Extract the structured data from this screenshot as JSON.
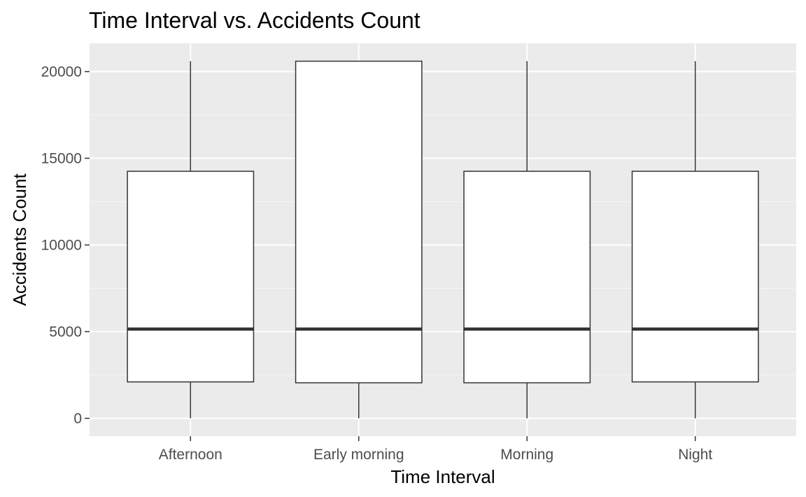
{
  "chart_data": {
    "type": "boxplot",
    "title": "Time Interval vs. Accidents Count",
    "xlabel": "Time Interval",
    "ylabel": "Accidents Count",
    "categories": [
      "Afternoon",
      "Early morning",
      "Morning",
      "Night"
    ],
    "boxes": [
      {
        "category": "Afternoon",
        "min": 0,
        "q1": 2100,
        "median": 5150,
        "q3": 14250,
        "max": 20600
      },
      {
        "category": "Early morning",
        "min": 0,
        "q1": 2050,
        "median": 5150,
        "q3": 20600,
        "max": 20600
      },
      {
        "category": "Morning",
        "min": 0,
        "q1": 2050,
        "median": 5150,
        "q3": 14250,
        "max": 20600
      },
      {
        "category": "Night",
        "min": 0,
        "q1": 2100,
        "median": 5150,
        "q3": 14250,
        "max": 20600
      }
    ],
    "y_ticks": [
      0,
      5000,
      10000,
      15000,
      20000
    ],
    "y_tick_labels": [
      "0",
      "5000",
      "10000",
      "15000",
      "20000"
    ],
    "ylim": [
      -1030,
      21630
    ],
    "grid": true,
    "legend": "none",
    "colors": {
      "panel_background": "#EBEBEB",
      "grid_major": "#FFFFFF",
      "grid_minor": "#F5F5F5",
      "box_fill": "#FFFFFF",
      "box_line": "#333333",
      "tick_text": "#4D4D4D"
    }
  }
}
